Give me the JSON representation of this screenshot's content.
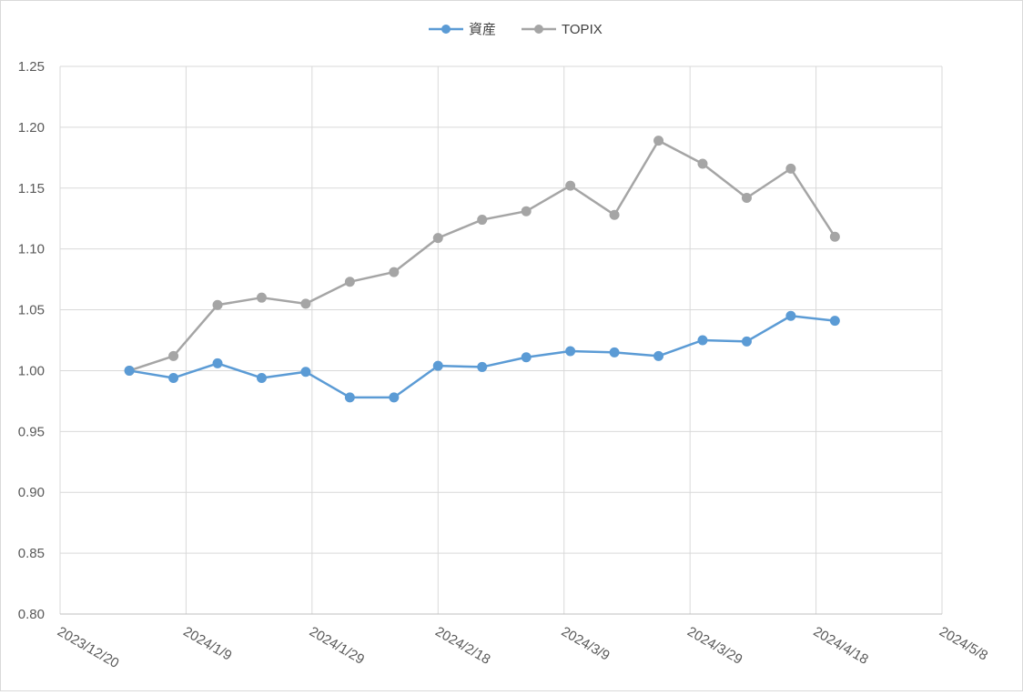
{
  "chart_data": {
    "type": "line",
    "title": "",
    "xlabel": "",
    "ylabel": "",
    "x_axis": {
      "type": "date",
      "min": "2023-12-20",
      "max": "2024-05-08",
      "major_unit_days": 20,
      "tick_labels": [
        "2023/12/20",
        "2024/1/9",
        "2024/1/29",
        "2024/2/18",
        "2024/3/9",
        "2024/3/29",
        "2024/4/18",
        "2024/5/8"
      ]
    },
    "y_axis": {
      "min": 0.8,
      "max": 1.25,
      "major_unit": 0.05,
      "tick_labels": [
        "0.80",
        "0.85",
        "0.90",
        "0.95",
        "1.00",
        "1.05",
        "1.10",
        "1.15",
        "1.20",
        "1.25"
      ]
    },
    "grid": {
      "horizontal": true,
      "vertical": true
    },
    "legend": {
      "position": "top"
    },
    "x": [
      "2023-12-31",
      "2024-01-07",
      "2024-01-14",
      "2024-01-21",
      "2024-01-28",
      "2024-02-04",
      "2024-02-11",
      "2024-02-18",
      "2024-02-25",
      "2024-03-03",
      "2024-03-10",
      "2024-03-17",
      "2024-03-24",
      "2024-03-31",
      "2024-04-07",
      "2024-04-14",
      "2024-04-21"
    ],
    "series": [
      {
        "name": "資産",
        "color": "#5b9bd5",
        "values": [
          1.0,
          0.994,
          1.006,
          0.994,
          0.999,
          0.978,
          0.978,
          1.004,
          1.003,
          1.011,
          1.016,
          1.015,
          1.012,
          1.025,
          1.024,
          1.045,
          1.041
        ]
      },
      {
        "name": "TOPIX",
        "color": "#a5a5a5",
        "values": [
          1.0,
          1.012,
          1.054,
          1.06,
          1.055,
          1.073,
          1.081,
          1.109,
          1.124,
          1.131,
          1.152,
          1.128,
          1.189,
          1.17,
          1.142,
          1.166,
          1.11
        ]
      }
    ]
  }
}
